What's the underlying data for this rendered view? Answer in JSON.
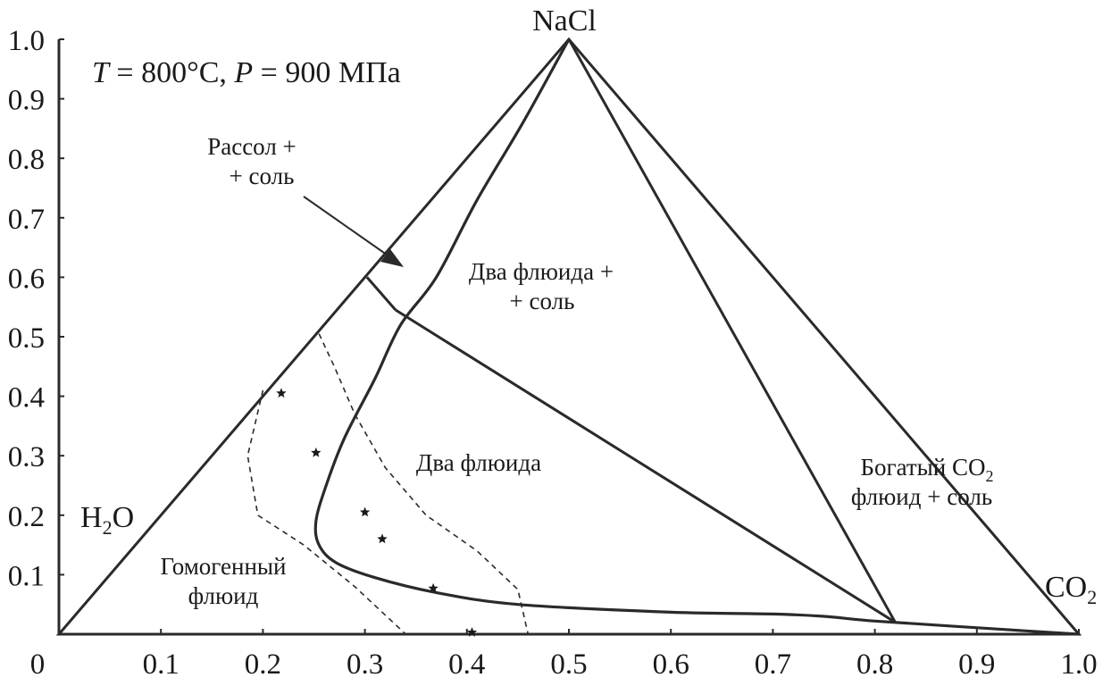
{
  "conditions": {
    "t_symbol": "T",
    "t_value": " = 800°C, ",
    "p_symbol": "P",
    "p_value": " = 900 МПа"
  },
  "vertices": {
    "top": "NaCl",
    "left_main": "H",
    "left_sub": "2",
    "left_end": "O",
    "right_main": "CO",
    "right_sub": "2"
  },
  "regions": {
    "brine_salt_line1": "Рассол +",
    "brine_salt_line2": "+ соль",
    "two_fluid_salt_line1": "Два флюида +",
    "two_fluid_salt_line2": "+ соль",
    "two_fluid": "Два флюида",
    "homogeneous_line1": "Гомогенный",
    "homogeneous_line2": "флюид",
    "co2_rich_line1_main": "Богатый CO",
    "co2_rich_line1_sub": "2",
    "co2_rich_line2": "флюид + соль"
  },
  "x_axis_ticks": [
    "0",
    "0.1",
    "0.2",
    "0.3",
    "0.4",
    "0.5",
    "0.6",
    "0.7",
    "0.8",
    "0.9",
    "1.0"
  ],
  "y_axis_ticks": [
    "0.1",
    "0.2",
    "0.3",
    "0.4",
    "0.5",
    "0.6",
    "0.7",
    "0.8",
    "0.9",
    "1.0"
  ],
  "colors": {
    "line": "#2a2a2a",
    "marker": "#1a1a1a",
    "background": "#ffffff"
  },
  "chart_data": {
    "type": "ternary-phase-diagram",
    "x_range": [
      0,
      1.0
    ],
    "y_range": [
      0,
      1.0
    ],
    "boundaries": {
      "triangle": [
        [
          0,
          0
        ],
        [
          0.5,
          1.0
        ],
        [
          1.0,
          0
        ]
      ],
      "salt_tie_line_co2_side": [
        [
          0.5,
          1.0
        ],
        [
          0.82,
          0.02
        ]
      ],
      "brine_salt_tie_line": [
        [
          0.302,
          0.6
        ],
        [
          0.33,
          0.545
        ]
      ],
      "three_phase_boundary": [
        [
          0.33,
          0.545
        ],
        [
          0.82,
          0.02
        ]
      ],
      "solvus": [
        [
          0.5,
          1.0
        ],
        [
          0.455,
          0.86
        ],
        [
          0.41,
          0.73
        ],
        [
          0.37,
          0.6
        ],
        [
          0.335,
          0.52
        ],
        [
          0.31,
          0.43
        ],
        [
          0.28,
          0.33
        ],
        [
          0.262,
          0.25
        ],
        [
          0.252,
          0.19
        ],
        [
          0.255,
          0.15
        ],
        [
          0.272,
          0.12
        ],
        [
          0.31,
          0.095
        ],
        [
          0.37,
          0.07
        ],
        [
          0.45,
          0.05
        ],
        [
          0.6,
          0.037
        ],
        [
          0.7,
          0.034
        ],
        [
          0.75,
          0.03
        ],
        [
          0.8,
          0.022
        ],
        [
          0.88,
          0.013
        ],
        [
          1.0,
          0
        ]
      ],
      "dashed_boundary_1": [
        [
          0.2,
          0.41
        ],
        [
          0.185,
          0.3
        ],
        [
          0.195,
          0.2
        ],
        [
          0.24,
          0.15
        ],
        [
          0.29,
          0.08
        ],
        [
          0.34,
          0
        ]
      ],
      "dashed_boundary_2": [
        [
          0.255,
          0.505
        ],
        [
          0.27,
          0.45
        ],
        [
          0.29,
          0.37
        ],
        [
          0.32,
          0.28
        ],
        [
          0.36,
          0.2
        ],
        [
          0.41,
          0.14
        ],
        [
          0.45,
          0.075
        ],
        [
          0.46,
          0
        ]
      ]
    },
    "experimental_points": [
      {
        "x": 0.218,
        "y": 0.405
      },
      {
        "x": 0.252,
        "y": 0.305
      },
      {
        "x": 0.3,
        "y": 0.205
      },
      {
        "x": 0.317,
        "y": 0.16
      },
      {
        "x": 0.367,
        "y": 0.077
      },
      {
        "x": 0.405,
        "y": 0.003
      }
    ]
  }
}
